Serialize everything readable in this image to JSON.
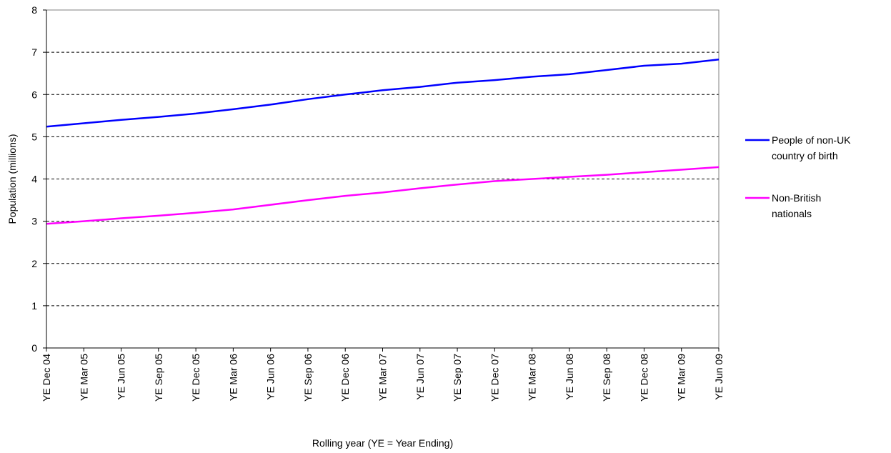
{
  "chart_data": {
    "type": "line",
    "title": "",
    "xlabel": "Rolling year (YE = Year Ending)",
    "ylabel": "Population (millions)",
    "ylim": [
      0,
      8
    ],
    "yticks": [
      0,
      1,
      2,
      3,
      4,
      5,
      6,
      7,
      8
    ],
    "grid": "horizontal dashed",
    "legend_position": "right",
    "categories": [
      "YE Dec 04",
      "YE Mar 05",
      "YE Jun 05",
      "YE Sep 05",
      "YE Dec 05",
      "YE Mar 06",
      "YE Jun 06",
      "YE Sep 06",
      "YE Dec 06",
      "YE Mar 07",
      "YE Jun 07",
      "YE Sep 07",
      "YE Dec 07",
      "YE Mar 08",
      "YE Jun 08",
      "YE Sep 08",
      "YE Dec 08",
      "YE Mar 09",
      "YE Jun 09"
    ],
    "series": [
      {
        "name": "People of non-UK country of birth",
        "legend_lines": [
          "People of non-UK",
          "country of birth"
        ],
        "color": "#0000ff",
        "values": [
          5.24,
          5.32,
          5.4,
          5.47,
          5.55,
          5.65,
          5.76,
          5.89,
          6.0,
          6.1,
          6.18,
          6.28,
          6.34,
          6.42,
          6.48,
          6.58,
          6.68,
          6.73,
          6.83
        ]
      },
      {
        "name": "Non-British nationals",
        "legend_lines": [
          "Non-British",
          "nationals"
        ],
        "color": "#ff00ff",
        "values": [
          2.94,
          3.0,
          3.07,
          3.13,
          3.2,
          3.28,
          3.39,
          3.5,
          3.6,
          3.68,
          3.78,
          3.87,
          3.95,
          4.0,
          4.05,
          4.1,
          4.16,
          4.22,
          4.28
        ]
      }
    ]
  }
}
